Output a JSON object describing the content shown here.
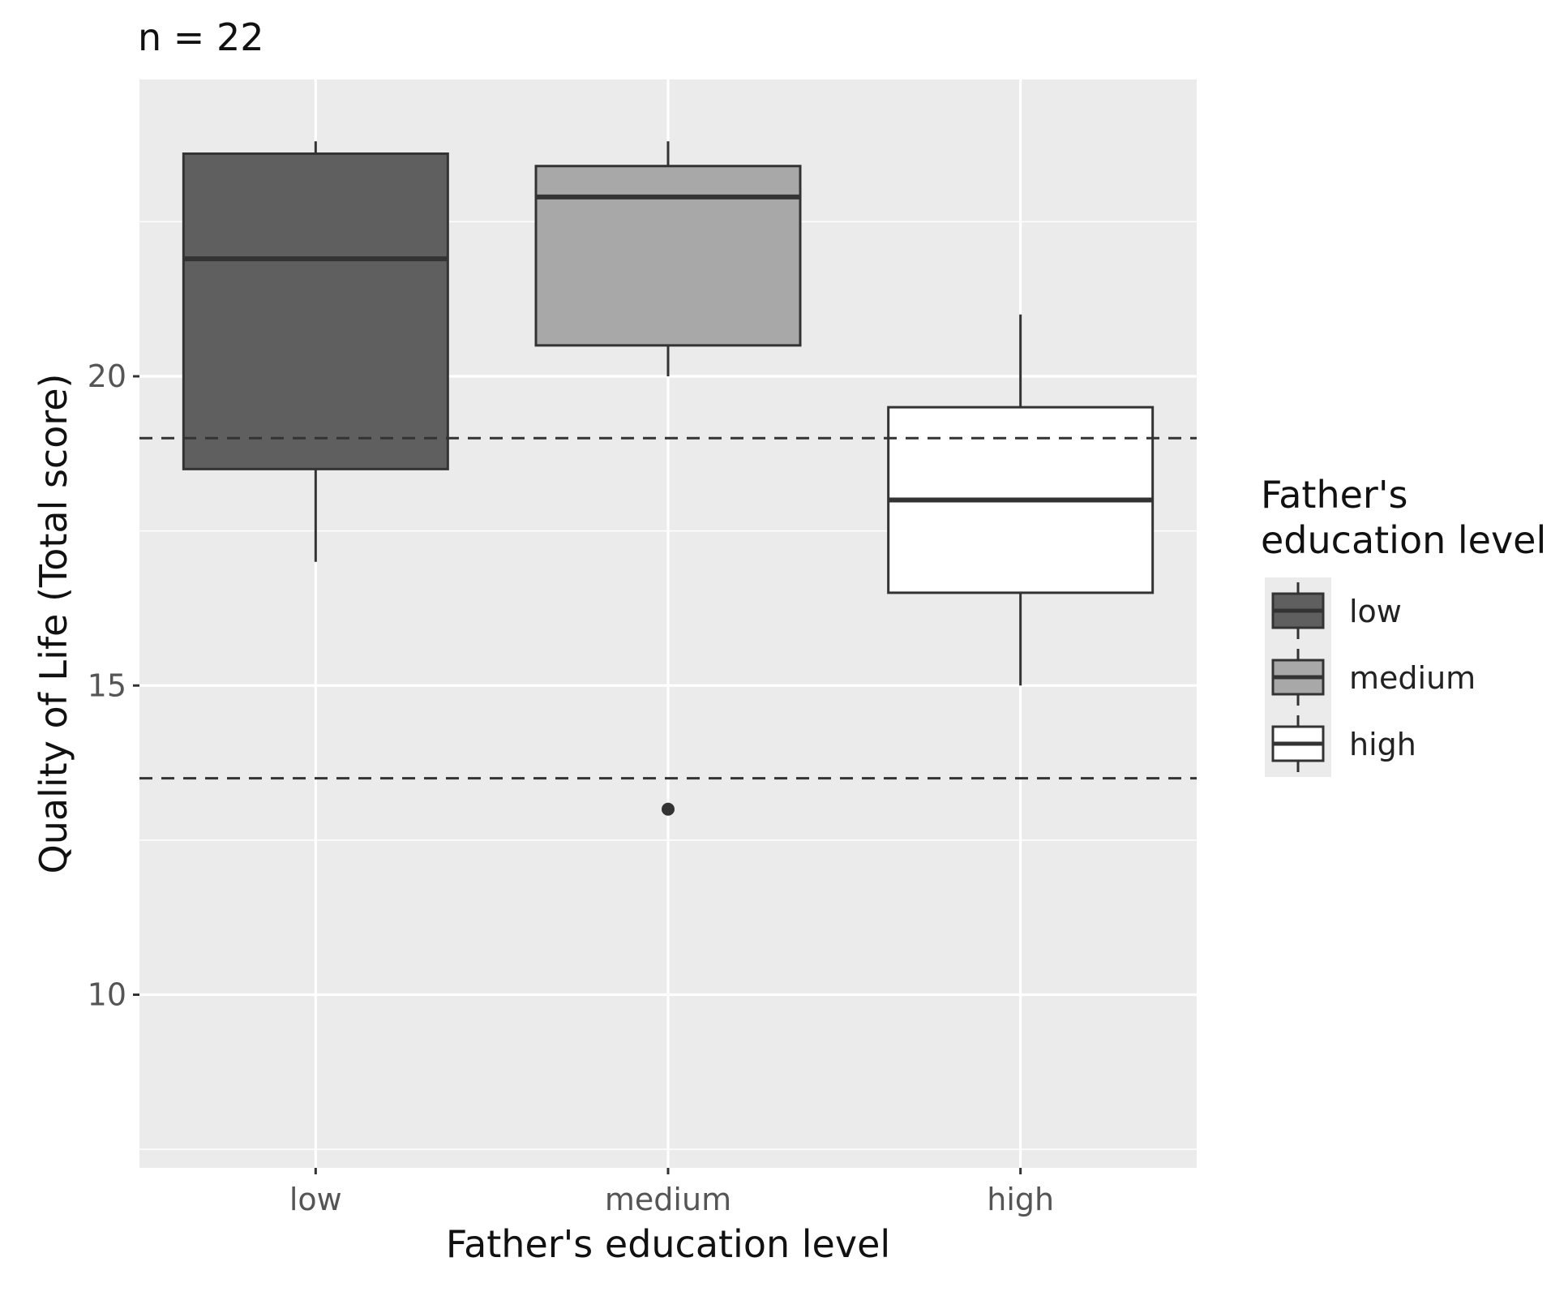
{
  "chart_data": {
    "type": "box",
    "title": "n = 22",
    "xlabel": "Father's education level",
    "ylabel": "Quality of Life (Total score)",
    "ylim": [
      7.2,
      24.8
    ],
    "y_ticks": [
      10,
      15,
      20
    ],
    "y_tick_labels": [
      "10",
      "15",
      "20"
    ],
    "categories": [
      "low",
      "medium",
      "high"
    ],
    "legend": {
      "title_lines": [
        "Father's",
        "education level"
      ],
      "position": "right"
    },
    "reference_lines": [
      {
        "y": 19,
        "style": "dashed"
      },
      {
        "y": 13.5,
        "style": "dashed"
      }
    ],
    "grid": true,
    "boxes": [
      {
        "name": "low",
        "fill": "#5f5f5f",
        "min": 17,
        "q1": 18.5,
        "median": 21.9,
        "q3": 23.6,
        "max": 23.8,
        "outliers": []
      },
      {
        "name": "medium",
        "fill": "#a8a8a8",
        "min": 20,
        "q1": 20.5,
        "median": 22.9,
        "q3": 23.4,
        "max": 23.8,
        "outliers": [
          13
        ]
      },
      {
        "name": "high",
        "fill": "#ffffff",
        "min": 15,
        "q1": 16.5,
        "median": 18.0,
        "q3": 19.5,
        "max": 21.0,
        "outliers": []
      }
    ],
    "colors": {
      "panel_background": "#ebebeb",
      "grid_line": "#ffffff",
      "box_outline": "#333333",
      "reference_line": "#333333"
    }
  }
}
